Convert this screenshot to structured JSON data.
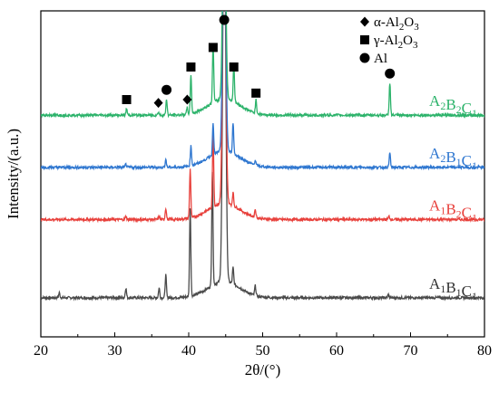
{
  "chart_data": {
    "type": "line",
    "xlabel": "2θ/(°)",
    "ylabel": "Intensity/(a.u.)",
    "xlim": [
      20,
      80
    ],
    "x_ticks": [
      "20",
      "30",
      "40",
      "50",
      "60",
      "70",
      "80"
    ],
    "y_ticks_shown": false,
    "legend": {
      "placement": "top-right",
      "entries": [
        {
          "marker": "diamond",
          "label": "α-Al2O3"
        },
        {
          "marker": "square",
          "label": "γ-Al2O3"
        },
        {
          "marker": "circle",
          "label": "Al"
        }
      ]
    },
    "series": [
      {
        "name": "A1B1C1",
        "color": "#4a4a4a",
        "baseline": 0.12,
        "peaks": [
          [
            22.5,
            0.015
          ],
          [
            31.5,
            0.03
          ],
          [
            36.0,
            0.03
          ],
          [
            36.9,
            0.07
          ],
          [
            40.2,
            0.27
          ],
          [
            43.2,
            0.35
          ],
          [
            44.8,
            1.2
          ],
          [
            46.0,
            0.05
          ],
          [
            49.0,
            0.03
          ],
          [
            67.0,
            0.01
          ]
        ]
      },
      {
        "name": "A1B2C1",
        "color": "#e8413c",
        "baseline": 0.36,
        "peaks": [
          [
            31.5,
            0.01
          ],
          [
            36.0,
            0.01
          ],
          [
            36.9,
            0.035
          ],
          [
            40.2,
            0.15
          ],
          [
            43.3,
            0.22
          ],
          [
            44.8,
            1.0
          ],
          [
            46.0,
            0.04
          ],
          [
            49.0,
            0.025
          ],
          [
            67.1,
            0.01
          ]
        ]
      },
      {
        "name": "A2B1C1",
        "color": "#2f77d0",
        "baseline": 0.52,
        "peaks": [
          [
            31.5,
            0.01
          ],
          [
            36.9,
            0.025
          ],
          [
            40.3,
            0.06
          ],
          [
            43.3,
            0.1
          ],
          [
            44.8,
            0.8
          ],
          [
            46.0,
            0.095
          ],
          [
            49.0,
            0.015
          ],
          [
            67.2,
            0.045
          ]
        ]
      },
      {
        "name": "A2B2C1",
        "color": "#2db36b",
        "baseline": 0.68,
        "peaks": [
          [
            31.6,
            0.02
          ],
          [
            35.9,
            0.01
          ],
          [
            37.0,
            0.05
          ],
          [
            39.8,
            0.02
          ],
          [
            40.3,
            0.12
          ],
          [
            43.3,
            0.18
          ],
          [
            44.8,
            0.7
          ],
          [
            46.1,
            0.12
          ],
          [
            49.1,
            0.04
          ],
          [
            67.2,
            0.1
          ]
        ]
      }
    ],
    "series_labels": [
      {
        "parts": [
          [
            "A",
            "2"
          ],
          [
            "B",
            "2"
          ],
          [
            "C",
            "1"
          ]
        ],
        "color": "#2db36b"
      },
      {
        "parts": [
          [
            "A",
            "2"
          ],
          [
            "B",
            "1"
          ],
          [
            "C",
            "1"
          ]
        ],
        "color": "#2f77d0"
      },
      {
        "parts": [
          [
            "A",
            "1"
          ],
          [
            "B",
            "2"
          ],
          [
            "C",
            "1"
          ]
        ],
        "color": "#e8413c"
      },
      {
        "parts": [
          [
            "A",
            "1"
          ],
          [
            "B",
            "1"
          ],
          [
            "C",
            "1"
          ]
        ],
        "color": "#333333"
      }
    ],
    "annotations": [
      {
        "x": 31.6,
        "marker": "square",
        "above": "A2B2C1"
      },
      {
        "x": 35.9,
        "marker": "diamond",
        "above": "A2B2C1"
      },
      {
        "x": 37.0,
        "marker": "circle",
        "above": "A2B2C1"
      },
      {
        "x": 39.8,
        "marker": "diamond",
        "above": "A2B2C1"
      },
      {
        "x": 40.3,
        "marker": "square",
        "above": "A2B2C1"
      },
      {
        "x": 43.3,
        "marker": "square",
        "above": "A2B2C1"
      },
      {
        "x": 44.8,
        "marker": "circle",
        "above": "A2B2C1"
      },
      {
        "x": 46.1,
        "marker": "square",
        "above": "A2B2C1"
      },
      {
        "x": 49.1,
        "marker": "square",
        "above": "A2B2C1"
      },
      {
        "x": 67.2,
        "marker": "circle",
        "above": "A2B2C1"
      }
    ],
    "grid": false
  }
}
